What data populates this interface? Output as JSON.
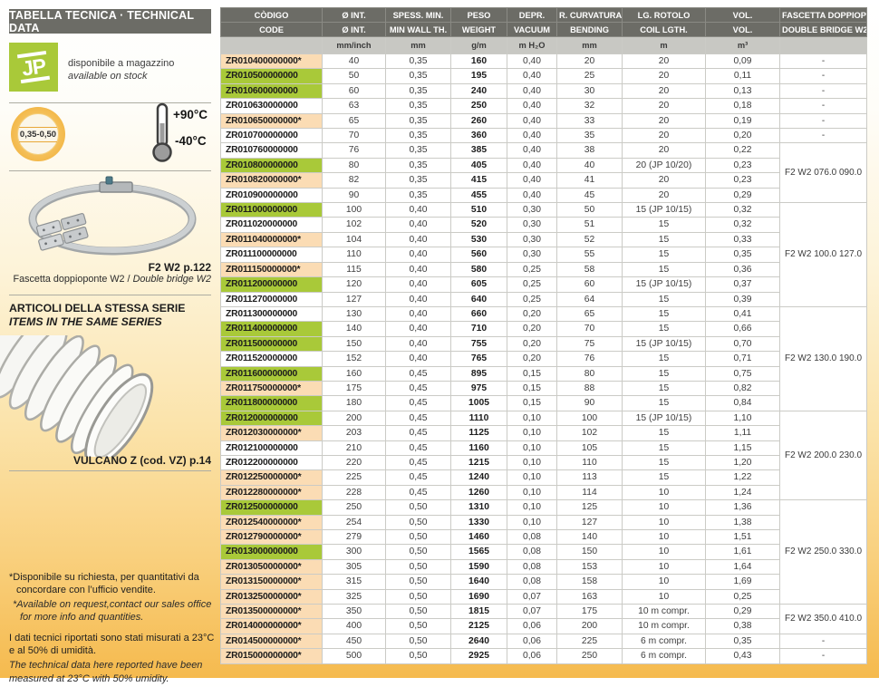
{
  "colors": {
    "green_highlight": "#a9c939",
    "peach_highlight": "#fbdcb4",
    "header_dark": "#6c6c66",
    "header_light": "#c8c8c3",
    "amber": "#f5ba4e"
  },
  "sidebar": {
    "banner": "TABELLA TECNICA · TECHNICAL DATA",
    "jp_logo": "JP",
    "stock_it": "disponibile a magazzino",
    "stock_en": "available on stock",
    "thickness_badge": "0,35-0,50",
    "temp_max": "+90°C",
    "temp_min": "-40°C",
    "clamp_ref": "F2 W2 p.122",
    "clamp_caption_it": "Fascetta doppioponte W2",
    "clamp_caption_sep": " / ",
    "clamp_caption_en": "Double bridge W2",
    "series_heading_it": "ARTICOLI DELLA STESSA SERIE",
    "series_heading_en": "ITEMS IN THE SAME SERIES",
    "hose_caption": "VULCANO Z (cod. VZ) p.14",
    "note1_it": "*Disponibile su richiesta, per quantitativi da concordare con l’ufficio vendite.",
    "note1_en": "*Available on request,contact our sales office for more info and quantities.",
    "note2_it": "I dati tecnici riportati sono stati misurati a 23°C e al 50% di umidità.",
    "note2_en": "The technical data here reported have been measured at 23°C with 50% umidity."
  },
  "table": {
    "columns": [
      {
        "it": "CÒDIGO",
        "en": "CODE",
        "unit": ""
      },
      {
        "it": "Ø INT.",
        "en": "Ø INT.",
        "unit": "mm/inch"
      },
      {
        "it": "SPESS. MIN.",
        "en": "MIN WALL TH.",
        "unit": "mm"
      },
      {
        "it": "PESO",
        "en": "WEIGHT",
        "unit": "g/m"
      },
      {
        "it": "DEPR.",
        "en": "VACUUM",
        "unit": "m H₂O"
      },
      {
        "it": "R. CURVATURA",
        "en": "BENDING",
        "unit": "mm"
      },
      {
        "it": "LG. ROTOLO",
        "en": "COIL LGTH.",
        "unit": "m"
      },
      {
        "it": "VOL.",
        "en": "VOL.",
        "unit": "m³"
      },
      {
        "it": "FASCETTA DOPPIOPONTE W2",
        "en": "DOUBLE BRIDGE W2",
        "unit": ""
      }
    ],
    "value_cell_names": [
      "diameter-cell",
      "wall-thickness-cell",
      "weight-cell",
      "vacuum-cell",
      "bending-radius-cell",
      "coil-length-cell",
      "volume-cell"
    ],
    "group_start_rows": [
      7,
      11,
      18,
      25,
      31,
      38,
      40
    ],
    "rows": [
      {
        "code": "ZR010400000000*",
        "hl": "peach",
        "vals": [
          "40",
          "0,35",
          "160",
          "0,40",
          "20",
          "20",
          "0,09"
        ],
        "fasc": "-",
        "span": 1
      },
      {
        "code": "ZR010500000000",
        "hl": "green",
        "vals": [
          "50",
          "0,35",
          "195",
          "0,40",
          "25",
          "20",
          "0,11"
        ],
        "fasc": "-",
        "span": 1
      },
      {
        "code": "ZR010600000000",
        "hl": "green",
        "vals": [
          "60",
          "0,35",
          "240",
          "0,40",
          "30",
          "20",
          "0,13"
        ],
        "fasc": "-",
        "span": 1
      },
      {
        "code": "ZR010630000000",
        "hl": "none",
        "vals": [
          "63",
          "0,35",
          "250",
          "0,40",
          "32",
          "20",
          "0,18"
        ],
        "fasc": "-",
        "span": 1
      },
      {
        "code": "ZR010650000000*",
        "hl": "peach",
        "vals": [
          "65",
          "0,35",
          "260",
          "0,40",
          "33",
          "20",
          "0,19"
        ],
        "fasc": "-",
        "span": 1
      },
      {
        "code": "ZR010700000000",
        "hl": "none",
        "vals": [
          "70",
          "0,35",
          "360",
          "0,40",
          "35",
          "20",
          "0,20"
        ],
        "fasc": "-",
        "span": 1
      },
      {
        "code": "ZR010760000000",
        "hl": "none",
        "vals": [
          "76",
          "0,35",
          "385",
          "0,40",
          "38",
          "20",
          "0,22"
        ],
        "fasc": "F2 W2 076.0 090.0",
        "span": 4
      },
      {
        "code": "ZR010800000000",
        "hl": "green",
        "vals": [
          "80",
          "0,35",
          "405",
          "0,40",
          "40",
          "20 (JP 10/20)",
          "0,23"
        ],
        "span": 0
      },
      {
        "code": "ZR010820000000*",
        "hl": "peach",
        "vals": [
          "82",
          "0,35",
          "415",
          "0,40",
          "41",
          "20",
          "0,23"
        ],
        "span": 0
      },
      {
        "code": "ZR010900000000",
        "hl": "none",
        "vals": [
          "90",
          "0,35",
          "455",
          "0,40",
          "45",
          "20",
          "0,29"
        ],
        "span": 0
      },
      {
        "code": "ZR011000000000",
        "hl": "green",
        "vals": [
          "100",
          "0,40",
          "510",
          "0,30",
          "50",
          "15 (JP 10/15)",
          "0,32"
        ],
        "fasc": "F2 W2 100.0 127.0",
        "span": 7
      },
      {
        "code": "ZR011020000000",
        "hl": "none",
        "vals": [
          "102",
          "0,40",
          "520",
          "0,30",
          "51",
          "15",
          "0,32"
        ],
        "span": 0
      },
      {
        "code": "ZR011040000000*",
        "hl": "peach",
        "vals": [
          "104",
          "0,40",
          "530",
          "0,30",
          "52",
          "15",
          "0,33"
        ],
        "span": 0
      },
      {
        "code": "ZR011100000000",
        "hl": "none",
        "vals": [
          "110",
          "0,40",
          "560",
          "0,30",
          "55",
          "15",
          "0,35"
        ],
        "span": 0
      },
      {
        "code": "ZR011150000000*",
        "hl": "peach",
        "vals": [
          "115",
          "0,40",
          "580",
          "0,25",
          "58",
          "15",
          "0,36"
        ],
        "span": 0
      },
      {
        "code": "ZR011200000000",
        "hl": "green",
        "vals": [
          "120",
          "0,40",
          "605",
          "0,25",
          "60",
          "15 (JP 10/15)",
          "0,37"
        ],
        "span": 0
      },
      {
        "code": "ZR011270000000",
        "hl": "none",
        "vals": [
          "127",
          "0,40",
          "640",
          "0,25",
          "64",
          "15",
          "0,39"
        ],
        "span": 0
      },
      {
        "code": "ZR011300000000",
        "hl": "none",
        "vals": [
          "130",
          "0,40",
          "660",
          "0,20",
          "65",
          "15",
          "0,41"
        ],
        "fasc": "F2 W2 130.0 190.0",
        "span": 7
      },
      {
        "code": "ZR011400000000",
        "hl": "green",
        "vals": [
          "140",
          "0,40",
          "710",
          "0,20",
          "70",
          "15",
          "0,66"
        ],
        "span": 0
      },
      {
        "code": "ZR011500000000",
        "hl": "green",
        "vals": [
          "150",
          "0,40",
          "755",
          "0,20",
          "75",
          "15 (JP 10/15)",
          "0,70"
        ],
        "span": 0
      },
      {
        "code": "ZR011520000000",
        "hl": "none",
        "vals": [
          "152",
          "0,40",
          "765",
          "0,20",
          "76",
          "15",
          "0,71"
        ],
        "span": 0
      },
      {
        "code": "ZR011600000000",
        "hl": "green",
        "vals": [
          "160",
          "0,45",
          "895",
          "0,15",
          "80",
          "15",
          "0,75"
        ],
        "span": 0
      },
      {
        "code": "ZR011750000000*",
        "hl": "peach",
        "vals": [
          "175",
          "0,45",
          "975",
          "0,15",
          "88",
          "15",
          "0,82"
        ],
        "span": 0
      },
      {
        "code": "ZR011800000000",
        "hl": "green",
        "vals": [
          "180",
          "0,45",
          "1005",
          "0,15",
          "90",
          "15",
          "0,84"
        ],
        "span": 0
      },
      {
        "code": "ZR012000000000",
        "hl": "green",
        "vals": [
          "200",
          "0,45",
          "1110",
          "0,10",
          "100",
          "15 (JP 10/15)",
          "1,10"
        ],
        "fasc": "F2 W2 200.0 230.0",
        "span": 6
      },
      {
        "code": "ZR012030000000*",
        "hl": "peach",
        "vals": [
          "203",
          "0,45",
          "1125",
          "0,10",
          "102",
          "15",
          "1,11"
        ],
        "span": 0
      },
      {
        "code": "ZR012100000000",
        "hl": "none",
        "vals": [
          "210",
          "0,45",
          "1160",
          "0,10",
          "105",
          "15",
          "1,15"
        ],
        "span": 0
      },
      {
        "code": "ZR012200000000",
        "hl": "none",
        "vals": [
          "220",
          "0,45",
          "1215",
          "0,10",
          "110",
          "15",
          "1,20"
        ],
        "span": 0
      },
      {
        "code": "ZR012250000000*",
        "hl": "peach",
        "vals": [
          "225",
          "0,45",
          "1240",
          "0,10",
          "113",
          "15",
          "1,22"
        ],
        "span": 0
      },
      {
        "code": "ZR012280000000*",
        "hl": "peach",
        "vals": [
          "228",
          "0,45",
          "1260",
          "0,10",
          "114",
          "10",
          "1,24"
        ],
        "span": 0
      },
      {
        "code": "ZR012500000000",
        "hl": "green",
        "vals": [
          "250",
          "0,50",
          "1310",
          "0,10",
          "125",
          "10",
          "1,36"
        ],
        "fasc": "F2 W2 250.0 330.0",
        "span": 7
      },
      {
        "code": "ZR012540000000*",
        "hl": "peach",
        "vals": [
          "254",
          "0,50",
          "1330",
          "0,10",
          "127",
          "10",
          "1,38"
        ],
        "span": 0
      },
      {
        "code": "ZR012790000000*",
        "hl": "peach",
        "vals": [
          "279",
          "0,50",
          "1460",
          "0,08",
          "140",
          "10",
          "1,51"
        ],
        "span": 0
      },
      {
        "code": "ZR013000000000",
        "hl": "green",
        "vals": [
          "300",
          "0,50",
          "1565",
          "0,08",
          "150",
          "10",
          "1,61"
        ],
        "span": 0
      },
      {
        "code": "ZR013050000000*",
        "hl": "peach",
        "vals": [
          "305",
          "0,50",
          "1590",
          "0,08",
          "153",
          "10",
          "1,64"
        ],
        "span": 0
      },
      {
        "code": "ZR013150000000*",
        "hl": "peach",
        "vals": [
          "315",
          "0,50",
          "1640",
          "0,08",
          "158",
          "10",
          "1,69"
        ],
        "span": 0
      },
      {
        "code": "ZR013250000000*",
        "hl": "peach",
        "vals": [
          "325",
          "0,50",
          "1690",
          "0,07",
          "163",
          "10",
          "0,25"
        ],
        "span": 0
      },
      {
        "code": "ZR013500000000*",
        "hl": "peach",
        "vals": [
          "350",
          "0,50",
          "1815",
          "0,07",
          "175",
          "10 m compr.",
          "0,29"
        ],
        "fasc": "F2 W2 350.0 410.0",
        "span": 2
      },
      {
        "code": "ZR014000000000*",
        "hl": "peach",
        "vals": [
          "400",
          "0,50",
          "2125",
          "0,06",
          "200",
          "10 m compr.",
          "0,38"
        ],
        "span": 0
      },
      {
        "code": "ZR014500000000*",
        "hl": "peach",
        "vals": [
          "450",
          "0,50",
          "2640",
          "0,06",
          "225",
          "6 m compr.",
          "0,35"
        ],
        "fasc": "-",
        "span": 1
      },
      {
        "code": "ZR015000000000*",
        "hl": "peach",
        "vals": [
          "500",
          "0,50",
          "2925",
          "0,06",
          "250",
          "6 m compr.",
          "0,43"
        ],
        "fasc": "-",
        "span": 1
      }
    ]
  }
}
